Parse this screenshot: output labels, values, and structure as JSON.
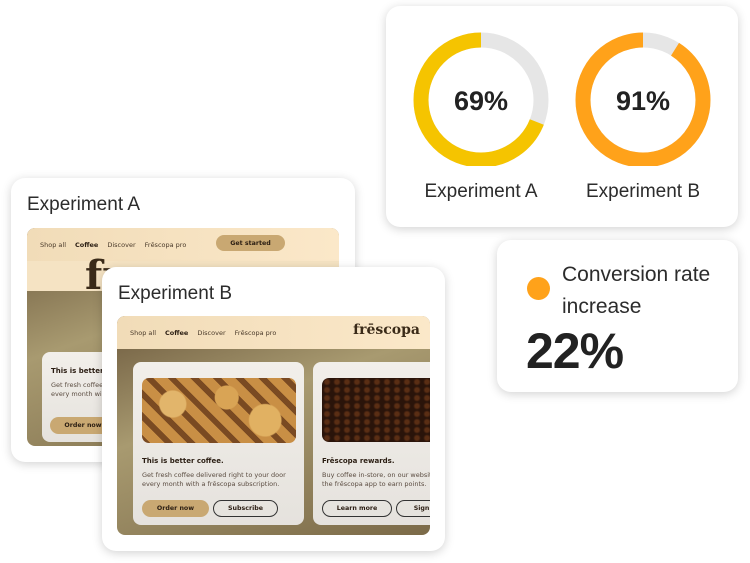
{
  "colors": {
    "experiment_a": "#f5c400",
    "experiment_b": "#ffa21a",
    "track": "#e6e6e6",
    "conversion_dot": "#ffa21a"
  },
  "results": [
    {
      "label": "Experiment A",
      "percent_text": "69%",
      "value": 69
    },
    {
      "label": "Experiment B",
      "percent_text": "91%",
      "value": 91
    }
  ],
  "conversion": {
    "label": "Conversion rate increase",
    "value": "22%"
  },
  "experiment_a": {
    "title": "Experiment A",
    "nav": [
      "Shop all",
      "Coffee",
      "Discover",
      "Frēscopa pro"
    ],
    "cta": "Get started",
    "logo": "fr",
    "card_title": "This is better co",
    "card_body": "Get fresh coffee every month with",
    "button": "Order now"
  },
  "experiment_b": {
    "title": "Experiment B",
    "nav": [
      "Shop all",
      "Coffee",
      "Discover",
      "Frēscopa pro"
    ],
    "logo": "frēscopa",
    "card1": {
      "title": "This is better coffee.",
      "body": "Get fresh coffee delivered right to your door every month with a frēscopa subscription.",
      "primary": "Order now",
      "secondary": "Subscribe"
    },
    "card2": {
      "title": "Frēscopa rewards.",
      "body": "Buy coffee in-store, on our website, or through the frēscopa app to earn points.",
      "primary": "Learn more",
      "secondary": "Sign in"
    }
  }
}
